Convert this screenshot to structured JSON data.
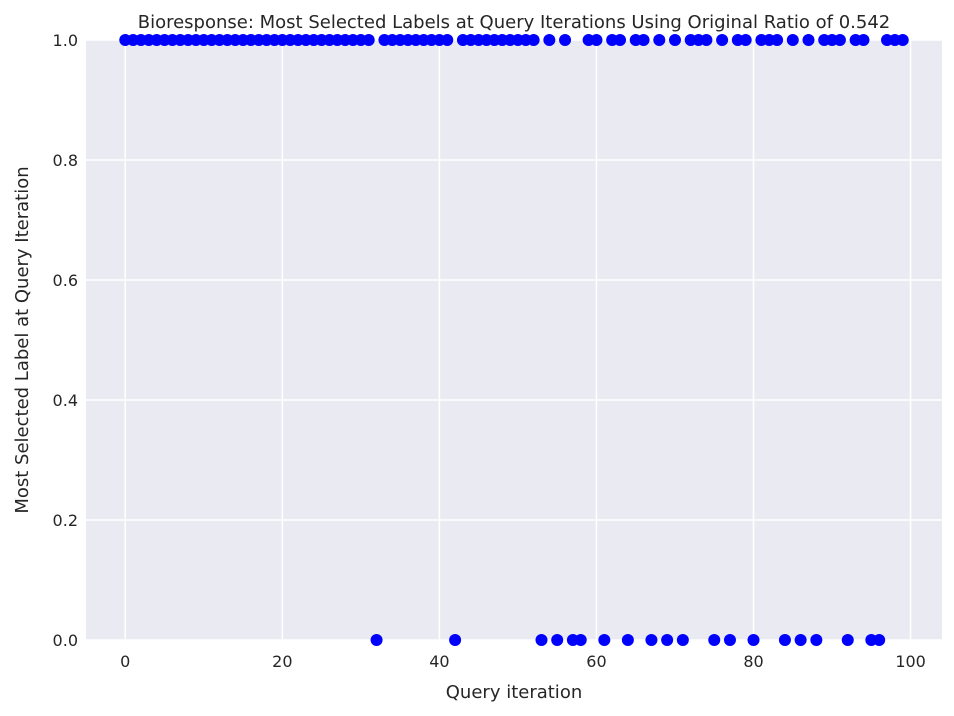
{
  "chart_data": {
    "type": "scatter",
    "title": "Bioresponse: Most Selected Labels at Query Iterations Using Original Ratio of 0.542",
    "xlabel": "Query iteration",
    "ylabel": "Most Selected Label at Query Iteration",
    "xlim": [
      -5,
      104
    ],
    "ylim": [
      0,
      1
    ],
    "xticks": [
      0,
      20,
      40,
      60,
      80,
      100
    ],
    "xtick_labels": [
      "0",
      "20",
      "40",
      "60",
      "80",
      "100"
    ],
    "yticks": [
      0.0,
      0.2,
      0.4,
      0.6,
      0.8,
      1.0
    ],
    "ytick_labels": [
      "0.0",
      "0.2",
      "0.4",
      "0.6",
      "0.8",
      "1.0"
    ],
    "grid": true,
    "background": "#eaeaf2",
    "grid_color": "#ffffff",
    "point_color": "#0000ff",
    "series": [
      {
        "x": [
          0,
          1,
          2,
          3,
          4,
          5,
          6,
          7,
          8,
          9,
          10,
          11,
          12,
          13,
          14,
          15,
          16,
          17,
          18,
          19,
          20,
          21,
          22,
          23,
          24,
          25,
          26,
          27,
          28,
          29,
          30,
          31,
          32,
          33,
          34,
          35,
          36,
          37,
          38,
          39,
          40,
          41,
          42,
          43,
          44,
          45,
          46,
          47,
          48,
          49,
          50,
          51,
          52,
          53,
          54,
          55,
          56,
          57,
          58,
          59,
          60,
          61,
          62,
          63,
          64,
          65,
          66,
          67,
          68,
          69,
          70,
          71,
          72,
          73,
          74,
          75,
          76,
          77,
          78,
          79,
          80,
          81,
          82,
          83,
          84,
          85,
          86,
          87,
          88,
          89,
          90,
          91,
          92,
          93,
          94,
          95,
          96,
          97,
          98,
          99
        ],
        "y": [
          1,
          1,
          1,
          1,
          1,
          1,
          1,
          1,
          1,
          1,
          1,
          1,
          1,
          1,
          1,
          1,
          1,
          1,
          1,
          1,
          1,
          1,
          1,
          1,
          1,
          1,
          1,
          1,
          1,
          1,
          1,
          1,
          0,
          1,
          1,
          1,
          1,
          1,
          1,
          1,
          1,
          1,
          0,
          1,
          1,
          1,
          1,
          1,
          1,
          1,
          1,
          1,
          1,
          0,
          1,
          0,
          1,
          0,
          0,
          1,
          1,
          0,
          1,
          1,
          0,
          1,
          1,
          0,
          1,
          0,
          1,
          0,
          1,
          1,
          1,
          0,
          1,
          0,
          1,
          1,
          0,
          1,
          1,
          1,
          0,
          1,
          0,
          1,
          0,
          1,
          1,
          1,
          0,
          1,
          1,
          0,
          0,
          1,
          1,
          1
        ]
      }
    ]
  }
}
